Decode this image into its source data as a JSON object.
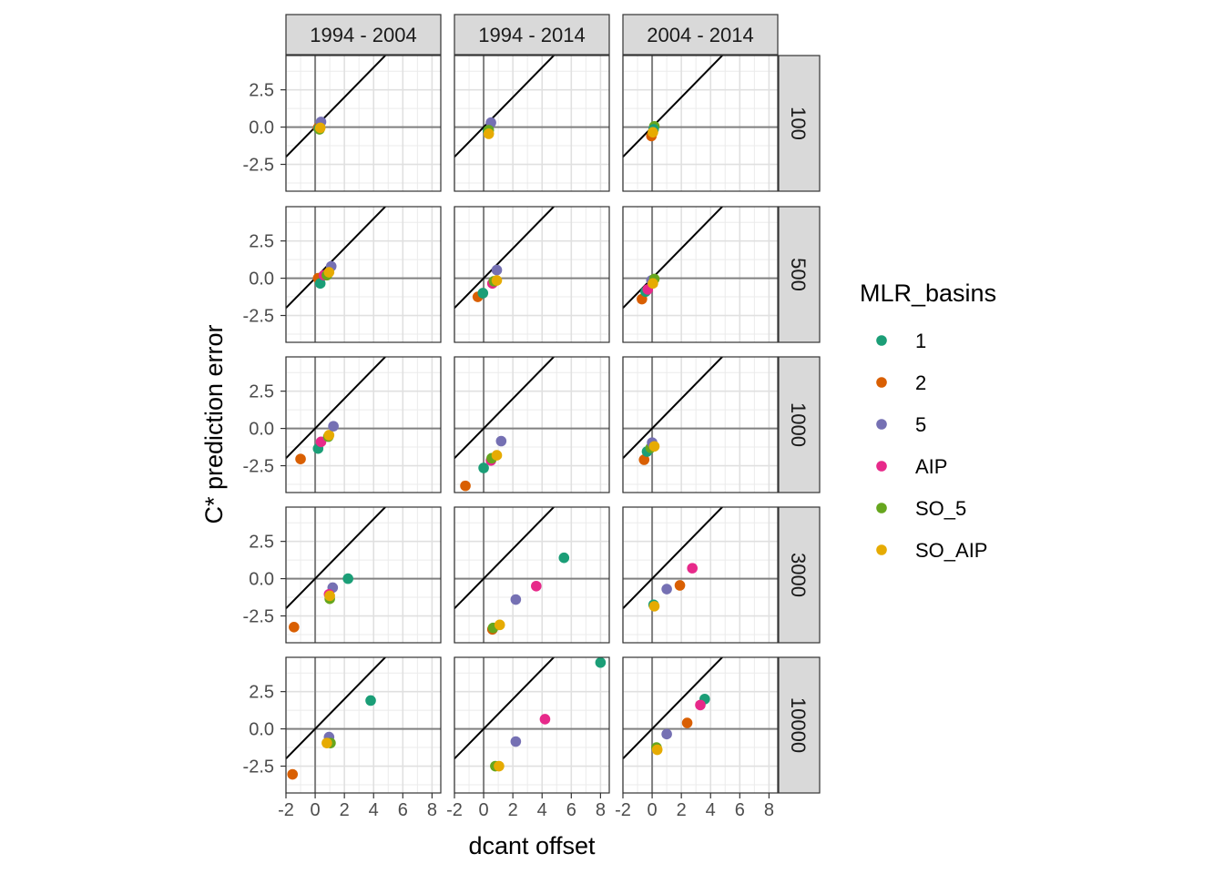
{
  "chart_data": {
    "type": "scatter",
    "xlabel": "dcant offset",
    "ylabel": "C* prediction error",
    "col_facets": [
      "1994 - 2004",
      "1994 - 2014",
      "2004 - 2014"
    ],
    "row_facets": [
      "100",
      "500",
      "1000",
      "3000",
      "10000"
    ],
    "xlim": [
      -2,
      8.6
    ],
    "ylim": [
      -4.3,
      4.8
    ],
    "x_ticks": [
      -2,
      0,
      2,
      4,
      6,
      8
    ],
    "y_ticks": [
      -2.5,
      0.0,
      2.5
    ],
    "x_tick_labels": [
      "-2",
      "0",
      "2",
      "4",
      "6",
      "8"
    ],
    "y_tick_labels": [
      "-2.5",
      "0.0",
      "2.5"
    ],
    "reference_lines": {
      "hline": 0,
      "vline": 0,
      "diagonal_slope": 1,
      "diagonal_intercept": 0
    },
    "legend": {
      "title": "MLR_basins",
      "position": "right",
      "entries": [
        {
          "label": "1",
          "color": "#1B9E77"
        },
        {
          "label": "2",
          "color": "#D95F02"
        },
        {
          "label": "5",
          "color": "#7570B3"
        },
        {
          "label": "AIP",
          "color": "#E7298A"
        },
        {
          "label": "SO_5",
          "color": "#66A61E"
        },
        {
          "label": "SO_AIP",
          "color": "#E6AB02"
        }
      ]
    },
    "points": [
      {
        "row": "100",
        "col": "1994 - 2004",
        "series": "2",
        "x": 0.2,
        "y": -0.05
      },
      {
        "row": "100",
        "col": "1994 - 2004",
        "series": "5",
        "x": 0.4,
        "y": 0.35
      },
      {
        "row": "100",
        "col": "1994 - 2004",
        "series": "1",
        "x": 0.25,
        "y": -0.1
      },
      {
        "row": "100",
        "col": "1994 - 2004",
        "series": "SO_5",
        "x": 0.3,
        "y": -0.15
      },
      {
        "row": "100",
        "col": "1994 - 2004",
        "series": "SO_AIP",
        "x": 0.35,
        "y": -0.05
      },
      {
        "row": "100",
        "col": "1994 - 2014",
        "series": "5",
        "x": 0.5,
        "y": 0.3
      },
      {
        "row": "100",
        "col": "1994 - 2014",
        "series": "1",
        "x": 0.3,
        "y": -0.25
      },
      {
        "row": "100",
        "col": "1994 - 2014",
        "series": "SO_5",
        "x": 0.35,
        "y": -0.2
      },
      {
        "row": "100",
        "col": "1994 - 2014",
        "series": "SO_AIP",
        "x": 0.35,
        "y": -0.45
      },
      {
        "row": "100",
        "col": "2004 - 2014",
        "series": "2",
        "x": -0.05,
        "y": -0.6
      },
      {
        "row": "100",
        "col": "2004 - 2014",
        "series": "SO_5",
        "x": 0.15,
        "y": 0.05
      },
      {
        "row": "100",
        "col": "2004 - 2014",
        "series": "1",
        "x": 0.1,
        "y": -0.15
      },
      {
        "row": "100",
        "col": "2004 - 2014",
        "series": "SO_AIP",
        "x": 0.05,
        "y": -0.35
      },
      {
        "row": "500",
        "col": "1994 - 2004",
        "series": "2",
        "x": 0.2,
        "y": 0.0
      },
      {
        "row": "500",
        "col": "1994 - 2004",
        "series": "1",
        "x": 0.35,
        "y": -0.35
      },
      {
        "row": "500",
        "col": "1994 - 2004",
        "series": "AIP",
        "x": 0.6,
        "y": 0.2
      },
      {
        "row": "500",
        "col": "1994 - 2004",
        "series": "SO_5",
        "x": 0.8,
        "y": 0.2
      },
      {
        "row": "500",
        "col": "1994 - 2004",
        "series": "5",
        "x": 1.1,
        "y": 0.8
      },
      {
        "row": "500",
        "col": "1994 - 2004",
        "series": "SO_AIP",
        "x": 0.95,
        "y": 0.4
      },
      {
        "row": "500",
        "col": "1994 - 2014",
        "series": "2",
        "x": -0.4,
        "y": -1.25
      },
      {
        "row": "500",
        "col": "1994 - 2014",
        "series": "1",
        "x": -0.05,
        "y": -1.0
      },
      {
        "row": "500",
        "col": "1994 - 2014",
        "series": "AIP",
        "x": 0.6,
        "y": -0.35
      },
      {
        "row": "500",
        "col": "1994 - 2014",
        "series": "SO_5",
        "x": 0.7,
        "y": -0.2
      },
      {
        "row": "500",
        "col": "1994 - 2014",
        "series": "5",
        "x": 0.9,
        "y": 0.55
      },
      {
        "row": "500",
        "col": "1994 - 2014",
        "series": "SO_AIP",
        "x": 0.9,
        "y": -0.15
      },
      {
        "row": "500",
        "col": "2004 - 2014",
        "series": "2",
        "x": -0.7,
        "y": -1.4
      },
      {
        "row": "500",
        "col": "2004 - 2014",
        "series": "1",
        "x": -0.45,
        "y": -0.9
      },
      {
        "row": "500",
        "col": "2004 - 2014",
        "series": "AIP",
        "x": -0.3,
        "y": -0.75
      },
      {
        "row": "500",
        "col": "2004 - 2014",
        "series": "5",
        "x": -0.05,
        "y": -0.15
      },
      {
        "row": "500",
        "col": "2004 - 2014",
        "series": "SO_5",
        "x": 0.15,
        "y": -0.05
      },
      {
        "row": "500",
        "col": "2004 - 2014",
        "series": "SO_AIP",
        "x": 0.05,
        "y": -0.35
      },
      {
        "row": "1000",
        "col": "1994 - 2004",
        "series": "2",
        "x": -1.0,
        "y": -2.05
      },
      {
        "row": "1000",
        "col": "1994 - 2004",
        "series": "1",
        "x": 0.2,
        "y": -1.35
      },
      {
        "row": "1000",
        "col": "1994 - 2004",
        "series": "AIP",
        "x": 0.4,
        "y": -0.9
      },
      {
        "row": "1000",
        "col": "1994 - 2004",
        "series": "SO_5",
        "x": 0.9,
        "y": -0.55
      },
      {
        "row": "1000",
        "col": "1994 - 2004",
        "series": "SO_AIP",
        "x": 0.95,
        "y": -0.45
      },
      {
        "row": "1000",
        "col": "1994 - 2004",
        "series": "5",
        "x": 1.25,
        "y": 0.15
      },
      {
        "row": "1000",
        "col": "1994 - 2014",
        "series": "2",
        "x": -1.25,
        "y": -3.85
      },
      {
        "row": "1000",
        "col": "1994 - 2014",
        "series": "1",
        "x": 0.0,
        "y": -2.65
      },
      {
        "row": "1000",
        "col": "1994 - 2014",
        "series": "AIP",
        "x": 0.5,
        "y": -2.15
      },
      {
        "row": "1000",
        "col": "1994 - 2014",
        "series": "SO_5",
        "x": 0.55,
        "y": -2.0
      },
      {
        "row": "1000",
        "col": "1994 - 2014",
        "series": "SO_AIP",
        "x": 0.9,
        "y": -1.8
      },
      {
        "row": "1000",
        "col": "1994 - 2014",
        "series": "5",
        "x": 1.2,
        "y": -0.85
      },
      {
        "row": "1000",
        "col": "2004 - 2014",
        "series": "2",
        "x": -0.55,
        "y": -2.1
      },
      {
        "row": "1000",
        "col": "2004 - 2014",
        "series": "1",
        "x": -0.35,
        "y": -1.55
      },
      {
        "row": "1000",
        "col": "2004 - 2014",
        "series": "SO_5",
        "x": -0.1,
        "y": -1.3
      },
      {
        "row": "1000",
        "col": "2004 - 2014",
        "series": "5",
        "x": 0.0,
        "y": -0.95
      },
      {
        "row": "1000",
        "col": "2004 - 2014",
        "series": "SO_AIP",
        "x": 0.15,
        "y": -1.2
      },
      {
        "row": "3000",
        "col": "1994 - 2004",
        "series": "2",
        "x": -1.45,
        "y": -3.25
      },
      {
        "row": "3000",
        "col": "1994 - 2004",
        "series": "1",
        "x": 2.25,
        "y": 0.0
      },
      {
        "row": "3000",
        "col": "1994 - 2004",
        "series": "5",
        "x": 1.2,
        "y": -0.6
      },
      {
        "row": "3000",
        "col": "1994 - 2004",
        "series": "AIP",
        "x": 0.95,
        "y": -1.05
      },
      {
        "row": "3000",
        "col": "1994 - 2004",
        "series": "SO_5",
        "x": 1.0,
        "y": -1.35
      },
      {
        "row": "3000",
        "col": "1994 - 2004",
        "series": "SO_AIP",
        "x": 1.0,
        "y": -1.15
      },
      {
        "row": "3000",
        "col": "1994 - 2014",
        "series": "1",
        "x": 5.5,
        "y": 1.4
      },
      {
        "row": "3000",
        "col": "1994 - 2014",
        "series": "AIP",
        "x": 3.6,
        "y": -0.5
      },
      {
        "row": "3000",
        "col": "1994 - 2014",
        "series": "5",
        "x": 2.2,
        "y": -1.4
      },
      {
        "row": "3000",
        "col": "1994 - 2014",
        "series": "2",
        "x": 0.6,
        "y": -3.4
      },
      {
        "row": "3000",
        "col": "1994 - 2014",
        "series": "SO_5",
        "x": 0.65,
        "y": -3.3
      },
      {
        "row": "3000",
        "col": "1994 - 2014",
        "series": "SO_AIP",
        "x": 1.1,
        "y": -3.1
      },
      {
        "row": "3000",
        "col": "2004 - 2014",
        "series": "AIP",
        "x": 2.75,
        "y": 0.7
      },
      {
        "row": "3000",
        "col": "2004 - 2014",
        "series": "2",
        "x": 1.9,
        "y": -0.45
      },
      {
        "row": "3000",
        "col": "2004 - 2014",
        "series": "5",
        "x": 1.0,
        "y": -0.7
      },
      {
        "row": "3000",
        "col": "2004 - 2014",
        "series": "1",
        "x": 0.1,
        "y": -1.75
      },
      {
        "row": "3000",
        "col": "2004 - 2014",
        "series": "SO_AIP",
        "x": 0.15,
        "y": -1.85
      },
      {
        "row": "10000",
        "col": "1994 - 2004",
        "series": "2",
        "x": -1.55,
        "y": -3.05
      },
      {
        "row": "10000",
        "col": "1994 - 2004",
        "series": "1",
        "x": 3.8,
        "y": 1.9
      },
      {
        "row": "10000",
        "col": "1994 - 2004",
        "series": "5",
        "x": 0.95,
        "y": -0.55
      },
      {
        "row": "10000",
        "col": "1994 - 2004",
        "series": "SO_5",
        "x": 1.05,
        "y": -0.95
      },
      {
        "row": "10000",
        "col": "1994 - 2004",
        "series": "SO_AIP",
        "x": 0.8,
        "y": -0.95
      },
      {
        "row": "10000",
        "col": "1994 - 2014",
        "series": "1",
        "x": 8.0,
        "y": 4.45
      },
      {
        "row": "10000",
        "col": "1994 - 2014",
        "series": "AIP",
        "x": 4.2,
        "y": 0.65
      },
      {
        "row": "10000",
        "col": "1994 - 2014",
        "series": "5",
        "x": 2.2,
        "y": -0.85
      },
      {
        "row": "10000",
        "col": "1994 - 2014",
        "series": "SO_5",
        "x": 0.8,
        "y": -2.5
      },
      {
        "row": "10000",
        "col": "1994 - 2014",
        "series": "SO_AIP",
        "x": 1.05,
        "y": -2.5
      },
      {
        "row": "10000",
        "col": "2004 - 2014",
        "series": "1",
        "x": 3.6,
        "y": 2.0
      },
      {
        "row": "10000",
        "col": "2004 - 2014",
        "series": "AIP",
        "x": 3.3,
        "y": 1.6
      },
      {
        "row": "10000",
        "col": "2004 - 2014",
        "series": "2",
        "x": 2.4,
        "y": 0.4
      },
      {
        "row": "10000",
        "col": "2004 - 2014",
        "series": "5",
        "x": 1.0,
        "y": -0.35
      },
      {
        "row": "10000",
        "col": "2004 - 2014",
        "series": "SO_5",
        "x": 0.3,
        "y": -1.25
      },
      {
        "row": "10000",
        "col": "2004 - 2014",
        "series": "SO_AIP",
        "x": 0.35,
        "y": -1.4
      }
    ]
  }
}
